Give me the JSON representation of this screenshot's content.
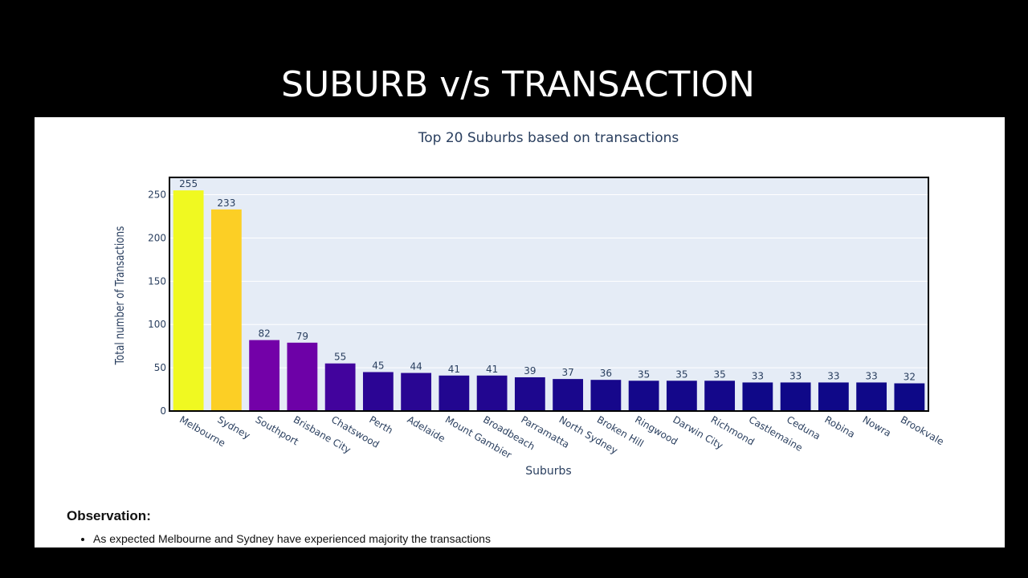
{
  "slide_title": "SUBURB v/s TRANSACTION",
  "chart_data": {
    "type": "bar",
    "title": "Top 20 Suburbs based on transactions",
    "xlabel": "Suburbs",
    "ylabel": "Total number of Transactions",
    "ylim": [
      0,
      270
    ],
    "yticks": [
      0,
      50,
      100,
      150,
      200,
      250
    ],
    "grid": true,
    "legend": "none",
    "categories": [
      "Melbourne",
      "Sydney",
      "Southport",
      "Brisbane City",
      "Chatswood",
      "Perth",
      "Adelaide",
      "Mount Gambier",
      "Broadbeach",
      "Parramatta",
      "North Sydney",
      "Broken Hill",
      "Ringwood",
      "Darwin City",
      "Richmond",
      "Castlemaine",
      "Ceduna",
      "Robina",
      "Nowra",
      "Brookvale"
    ],
    "values": [
      255,
      233,
      82,
      79,
      55,
      45,
      44,
      41,
      41,
      39,
      37,
      36,
      35,
      35,
      35,
      33,
      33,
      33,
      33,
      32
    ],
    "colorscale": [
      "#0d0887",
      "#46039f",
      "#7201a8",
      "#9c179e",
      "#bd3786",
      "#d8576b",
      "#ed7953",
      "#fb9f3a",
      "#fdca26",
      "#f0f921"
    ],
    "plot_bg": "#e5ecf6",
    "text_color": "#2a3f5f"
  },
  "observation": {
    "heading": "Observation:",
    "items": [
      "As expected Melbourne and Sydney have experienced majority the transactions"
    ]
  }
}
